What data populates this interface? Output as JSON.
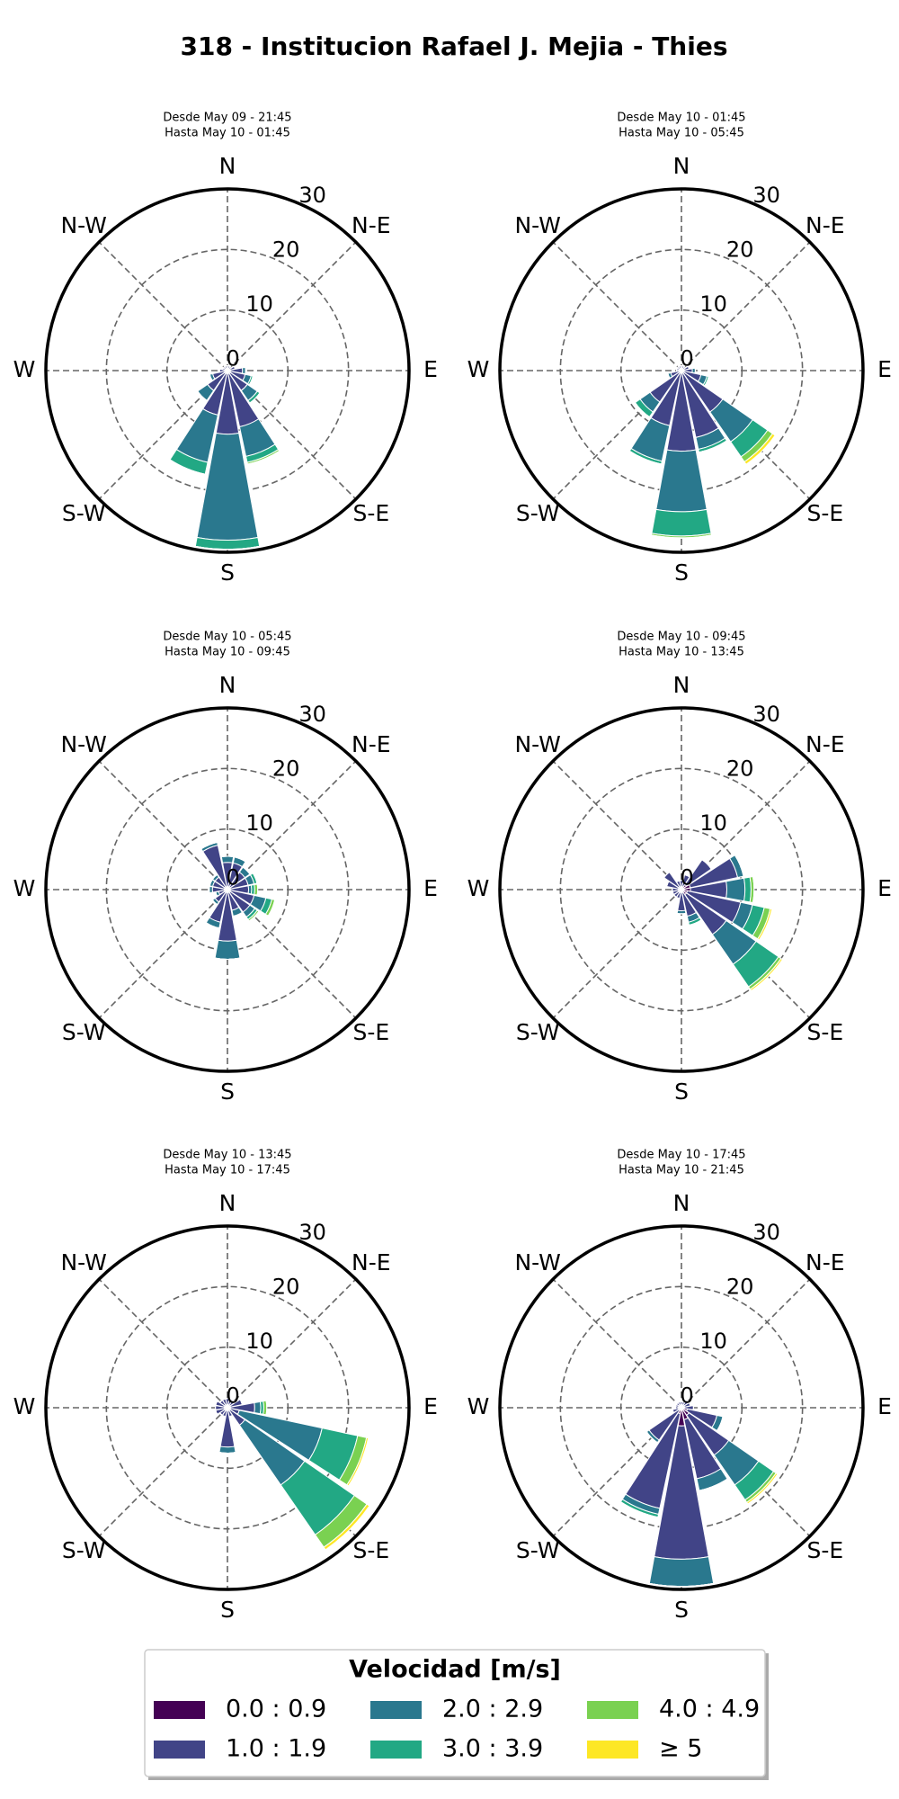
{
  "title": "318 - Institucion Rafael J. Mejia - Thies",
  "legend_title": "Velocidad [m/s]",
  "chart_data": [
    {
      "type": "windrose",
      "title": [
        "Desde May 09 - 21:45",
        "Hasta May 10 - 01:45"
      ],
      "categories": [
        "N",
        null,
        "N-E",
        null,
        "E",
        null,
        "S-E",
        null,
        "S",
        null,
        "S-W",
        null,
        "W",
        null,
        "N-W",
        null
      ],
      "rlim": [
        0,
        30
      ],
      "rticks": [
        0,
        10,
        20,
        30
      ],
      "series": [
        {
          "name": "0.0 : 0.9",
          "color": "#440154",
          "values": [
            0.3,
            0.3,
            0.3,
            0.3,
            0.5,
            0.5,
            0.5,
            0.5,
            0.5,
            0.5,
            0.5,
            0.5,
            0.3,
            0.3,
            0.3,
            0.3
          ]
        },
        {
          "name": "1.0 : 1.9",
          "color": "#414487",
          "values": [
            0.5,
            0.5,
            0.5,
            1,
            2,
            2.5,
            3.5,
            9,
            10,
            7,
            3.5,
            2,
            1,
            0.5,
            0.5,
            0.5
          ]
        },
        {
          "name": "2.0 : 2.9",
          "color": "#2a788e",
          "values": [
            0,
            0,
            0,
            0,
            0.5,
            1,
            2,
            5,
            17.5,
            8,
            2,
            0.5,
            0,
            0,
            0,
            0
          ]
        },
        {
          "name": "3.0 : 3.9",
          "color": "#22a884",
          "values": [
            0,
            0,
            0,
            0,
            0,
            0.3,
            0.5,
            1,
            1.5,
            2,
            0,
            0,
            0,
            0,
            0,
            0
          ]
        },
        {
          "name": "4.0 : 4.9",
          "color": "#7ad151",
          "values": [
            0,
            0,
            0,
            0,
            0,
            0,
            0,
            0.3,
            0,
            0,
            0,
            0,
            0,
            0,
            0,
            0
          ]
        },
        {
          "name": "≥ 5",
          "color": "#fde725",
          "values": [
            0,
            0,
            0,
            0,
            0,
            0,
            0,
            0,
            0,
            0,
            0,
            0,
            0,
            0,
            0,
            0
          ]
        }
      ]
    },
    {
      "type": "windrose",
      "title": [
        "Desde May 10 - 01:45",
        "Hasta May 10 - 05:45"
      ],
      "categories": [
        "N",
        null,
        "N-E",
        null,
        "E",
        null,
        "S-E",
        null,
        "S",
        null,
        "S-W",
        null,
        "W",
        null,
        "N-W",
        null
      ],
      "rlim": [
        0,
        30
      ],
      "rticks": [
        0,
        10,
        20,
        30
      ],
      "series": [
        {
          "name": "0.0 : 0.9",
          "color": "#440154",
          "values": [
            0.3,
            0.3,
            0.3,
            0.3,
            0.3,
            0.3,
            0.3,
            0.3,
            0.3,
            0.3,
            0.3,
            0.3,
            0.3,
            0.3,
            0.3,
            0.3
          ]
        },
        {
          "name": "1.0 : 1.9",
          "color": "#414487",
          "values": [
            0.5,
            0.5,
            0.5,
            1,
            1.5,
            3,
            8,
            11,
            13,
            9,
            6,
            1.5,
            0.5,
            0.5,
            0.5,
            0.5
          ]
        },
        {
          "name": "2.0 : 2.9",
          "color": "#2a788e",
          "values": [
            0,
            0,
            0,
            0,
            0.5,
            1,
            6,
            2,
            10,
            6,
            2,
            0.5,
            0,
            0,
            0,
            0
          ]
        },
        {
          "name": "3.0 : 3.9",
          "color": "#22a884",
          "values": [
            0,
            0,
            0,
            0,
            0,
            0.3,
            3,
            0.5,
            4,
            0.5,
            1,
            0,
            0,
            0,
            0,
            0
          ]
        },
        {
          "name": "4.0 : 4.9",
          "color": "#7ad151",
          "values": [
            0,
            0,
            0,
            0,
            0,
            0,
            1,
            0,
            0.3,
            0,
            0,
            0,
            0,
            0,
            0,
            0
          ]
        },
        {
          "name": "≥ 5",
          "color": "#fde725",
          "values": [
            0,
            0,
            0,
            0,
            0,
            0,
            0.5,
            0,
            0,
            0,
            0,
            0,
            0,
            0,
            0,
            0
          ]
        }
      ]
    },
    {
      "type": "windrose",
      "title": [
        "Desde May 10 - 05:45",
        "Hasta May 10 - 09:45"
      ],
      "categories": [
        "N",
        null,
        "N-E",
        null,
        "E",
        null,
        "S-E",
        null,
        "S",
        null,
        "S-W",
        null,
        "W",
        null,
        "N-W",
        null
      ],
      "rlim": [
        0,
        30
      ],
      "rticks": [
        0,
        10,
        20,
        30
      ],
      "series": [
        {
          "name": "0.0 : 0.9",
          "color": "#440154",
          "values": [
            0.5,
            0.5,
            0.5,
            0.5,
            0.5,
            0.5,
            0.5,
            0.5,
            0.5,
            0.5,
            0.5,
            0.5,
            0.5,
            0.5,
            0.5,
            0.5
          ]
        },
        {
          "name": "1.0 : 1.9",
          "color": "#414487",
          "values": [
            4,
            4,
            3,
            3,
            3,
            4,
            4,
            3,
            8,
            5,
            2,
            1,
            2,
            2,
            2,
            7
          ]
        },
        {
          "name": "2.0 : 2.9",
          "color": "#2a788e",
          "values": [
            1,
            1,
            1,
            1,
            0.5,
            2,
            1,
            1,
            3,
            1,
            0.5,
            0.5,
            0.5,
            0.5,
            0.5,
            0.5
          ]
        },
        {
          "name": "3.0 : 3.9",
          "color": "#22a884",
          "values": [
            0,
            0,
            0,
            0.5,
            0.5,
            1,
            0.5,
            0,
            0,
            0,
            0,
            0,
            0,
            0,
            0,
            0
          ]
        },
        {
          "name": "4.0 : 4.9",
          "color": "#7ad151",
          "values": [
            0,
            0,
            0,
            0,
            0.5,
            0.5,
            0.3,
            0,
            0,
            0,
            0,
            0,
            0,
            0,
            0,
            0
          ]
        },
        {
          "name": "≥ 5",
          "color": "#fde725",
          "values": [
            0,
            0,
            0,
            0,
            0,
            0,
            0,
            0,
            0,
            0,
            0,
            0,
            0,
            0,
            0,
            0
          ]
        }
      ]
    },
    {
      "type": "windrose",
      "title": [
        "Desde May 10 - 09:45",
        "Hasta May 10 - 13:45"
      ],
      "categories": [
        "N",
        null,
        "N-E",
        null,
        "E",
        null,
        "S-E",
        null,
        "S",
        null,
        "S-W",
        null,
        "W",
        null,
        "N-W",
        null
      ],
      "rlim": [
        0,
        30
      ],
      "rticks": [
        0,
        10,
        20,
        30
      ],
      "series": [
        {
          "name": "0.0 : 0.9",
          "color": "#440154",
          "values": [
            0.5,
            0.5,
            1,
            1.5,
            1.5,
            1,
            1,
            0.5,
            0.5,
            0.5,
            0.5,
            0.5,
            0.5,
            0.5,
            0.5,
            0.5
          ]
        },
        {
          "name": "1.0 : 1.9",
          "color": "#414487",
          "values": [
            1,
            2,
            5,
            8,
            6,
            9,
            8,
            4,
            3,
            1,
            1,
            1,
            1,
            2,
            3,
            1
          ]
        },
        {
          "name": "2.0 : 2.9",
          "color": "#2a788e",
          "values": [
            0,
            0,
            0,
            1,
            3,
            2,
            6,
            1,
            0.5,
            0,
            0,
            0,
            0,
            0,
            0,
            0
          ]
        },
        {
          "name": "3.0 : 3.9",
          "color": "#22a884",
          "values": [
            0,
            0,
            0,
            0,
            1,
            2,
            4.5,
            0.5,
            0,
            0,
            0,
            0,
            0,
            0,
            0,
            0
          ]
        },
        {
          "name": "4.0 : 4.9",
          "color": "#7ad151",
          "values": [
            0,
            0,
            0,
            0,
            0.5,
            1,
            0.5,
            0,
            0,
            0,
            0,
            0,
            0,
            0,
            0,
            0
          ]
        },
        {
          "name": "≥ 5",
          "color": "#fde725",
          "values": [
            0,
            0,
            0,
            0,
            0,
            0.3,
            0.3,
            0,
            0,
            0,
            0,
            0,
            0,
            0,
            0,
            0
          ]
        }
      ]
    },
    {
      "type": "windrose",
      "title": [
        "Desde May 10 - 13:45",
        "Hasta May 10 - 17:45"
      ],
      "categories": [
        "N",
        null,
        "N-E",
        null,
        "E",
        null,
        "S-E",
        null,
        "S",
        null,
        "S-W",
        null,
        "W",
        null,
        "N-W",
        null
      ],
      "rlim": [
        0,
        30
      ],
      "rticks": [
        0,
        10,
        20,
        30
      ],
      "series": [
        {
          "name": "0.0 : 0.9",
          "color": "#440154",
          "values": [
            0.5,
            0.5,
            0.5,
            0.5,
            0.5,
            0.5,
            0.5,
            0.5,
            0.5,
            0.5,
            0.5,
            0.5,
            0.5,
            0.5,
            0.5,
            0.5
          ]
        },
        {
          "name": "1.0 : 1.9",
          "color": "#414487",
          "values": [
            1,
            1,
            1,
            2,
            4,
            1.5,
            3,
            1,
            6,
            1,
            1,
            1.5,
            1.5,
            1.5,
            1,
            1
          ]
        },
        {
          "name": "2.0 : 2.9",
          "color": "#2a788e",
          "values": [
            0,
            0,
            0,
            0,
            1,
            14,
            12,
            0,
            1,
            0,
            0,
            0,
            0,
            0,
            0,
            0
          ]
        },
        {
          "name": "3.0 : 3.9",
          "color": "#22a884",
          "values": [
            0,
            0,
            0,
            0,
            0.5,
            6,
            10,
            0,
            0,
            0,
            0,
            0,
            0,
            0,
            0,
            0
          ]
        },
        {
          "name": "4.0 : 4.9",
          "color": "#7ad151",
          "values": [
            0,
            0,
            0,
            0,
            0.5,
            1.5,
            2.5,
            0,
            0,
            0,
            0,
            0,
            0,
            0,
            0,
            0
          ]
        },
        {
          "name": "≥ 5",
          "color": "#fde725",
          "values": [
            0,
            0,
            0,
            0,
            0,
            0.3,
            0.5,
            0,
            0,
            0,
            0,
            0,
            0,
            0,
            0,
            0
          ]
        }
      ]
    },
    {
      "type": "windrose",
      "title": [
        "Desde May 10 - 17:45",
        "Hasta May 10 - 21:45"
      ],
      "categories": [
        "N",
        null,
        "N-E",
        null,
        "E",
        null,
        "S-E",
        null,
        "S",
        null,
        "S-W",
        null,
        "W",
        null,
        "N-W",
        null
      ],
      "rlim": [
        0,
        30
      ],
      "rticks": [
        0,
        10,
        20,
        30
      ],
      "series": [
        {
          "name": "0.0 : 0.9",
          "color": "#440154",
          "values": [
            0.5,
            0.5,
            0.5,
            0.5,
            0.5,
            1,
            1.5,
            2,
            3,
            1,
            0.5,
            0.5,
            0.5,
            0.5,
            0.5,
            0.5
          ]
        },
        {
          "name": "1.0 : 1.9",
          "color": "#414487",
          "values": [
            0.5,
            0.5,
            1,
            1,
            1.5,
            5,
            8,
            10,
            22,
            16,
            6,
            1,
            0.5,
            0.5,
            0.5,
            0.5
          ]
        },
        {
          "name": "2.0 : 2.9",
          "color": "#2a788e",
          "values": [
            0,
            0,
            0,
            0,
            0,
            1,
            6,
            2,
            4.5,
            1,
            0.5,
            0,
            0,
            0,
            0,
            0
          ]
        },
        {
          "name": "3.0 : 3.9",
          "color": "#22a884",
          "values": [
            0,
            0,
            0,
            0,
            0,
            0,
            3,
            0,
            0,
            0.5,
            0,
            0,
            0,
            0,
            0,
            0
          ]
        },
        {
          "name": "4.0 : 4.9",
          "color": "#7ad151",
          "values": [
            0,
            0,
            0,
            0,
            0,
            0,
            0.5,
            0,
            0,
            0,
            0,
            0,
            0,
            0,
            0,
            0
          ]
        },
        {
          "name": "≥ 5",
          "color": "#fde725",
          "values": [
            0,
            0,
            0,
            0,
            0,
            0,
            0.3,
            0,
            0,
            0,
            0,
            0,
            0,
            0,
            0,
            0
          ]
        }
      ]
    }
  ]
}
